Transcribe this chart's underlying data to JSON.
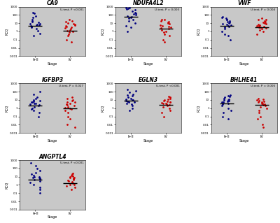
{
  "panels": [
    {
      "title": "CA9",
      "ptext": "U-test, P <0.001",
      "blue_median": 5.0,
      "red_median": 1.2,
      "blue_dots": [
        0.3,
        0.6,
        1.2,
        2.0,
        3.0,
        4.0,
        5.0,
        5.5,
        6.0,
        7.0,
        8.0,
        9.0,
        12.0,
        15.0,
        20.0,
        30.0,
        50.0,
        80.0,
        150.0,
        200.0
      ],
      "red_dots": [
        0.05,
        0.1,
        0.3,
        0.5,
        0.8,
        1.0,
        1.2,
        1.5,
        2.0,
        2.5,
        3.0,
        4.0,
        5.0,
        6.0,
        7.0,
        8.0,
        10.0,
        15.0,
        20.0,
        25.0
      ],
      "ylim": [
        0.001,
        1000
      ],
      "ytick_labels": [
        "0.001",
        "0.01",
        "0.1",
        "1",
        "10",
        "100",
        "1000"
      ],
      "ytick_vals": [
        0.001,
        0.01,
        0.1,
        1,
        10,
        100,
        1000
      ]
    },
    {
      "title": "NDUFA4L2",
      "ptext": "U-test, P = 0.003",
      "blue_median": 60.0,
      "red_median": 2.0,
      "blue_dots": [
        1.0,
        3.0,
        5.0,
        10.0,
        20.0,
        30.0,
        40.0,
        50.0,
        60.0,
        80.0,
        100.0,
        120.0,
        150.0,
        200.0,
        300.0,
        400.0,
        500.0,
        600.0,
        700.0,
        800.0
      ],
      "red_dots": [
        0.05,
        0.1,
        0.3,
        0.5,
        0.8,
        1.0,
        1.5,
        2.0,
        2.5,
        3.0,
        4.0,
        5.0,
        6.0,
        8.0,
        10.0,
        12.0,
        15.0,
        20.0,
        25.0,
        30.0
      ],
      "ylim": [
        0.001,
        1000
      ],
      "ytick_labels": [
        "0.001",
        "0.01",
        "0.1",
        "1",
        "10",
        "100",
        "1000"
      ],
      "ytick_vals": [
        0.001,
        0.01,
        0.1,
        1,
        10,
        100,
        1000
      ]
    },
    {
      "title": "VWF",
      "ptext": "U-test, P = 0.004",
      "blue_median": 5.0,
      "red_median": 3.5,
      "blue_dots": [
        0.1,
        0.3,
        0.5,
        1.0,
        2.0,
        3.0,
        4.0,
        5.0,
        6.0,
        7.0,
        8.0,
        10.0,
        12.0,
        15.0,
        20.0,
        25.0,
        30.0,
        40.0,
        50.0,
        60.0
      ],
      "red_dots": [
        0.5,
        1.0,
        1.5,
        2.0,
        2.5,
        3.0,
        3.5,
        4.0,
        4.5,
        5.0,
        6.0,
        7.0,
        8.0,
        10.0,
        12.0,
        15.0,
        20.0,
        25.0,
        30.0,
        40.0
      ],
      "ylim": [
        0.001,
        1000
      ],
      "ytick_labels": [
        "0.001",
        "0.01",
        "0.1",
        "1",
        "10",
        "100",
        "1000"
      ],
      "ytick_vals": [
        0.001,
        0.01,
        0.1,
        1,
        10,
        100,
        1000
      ]
    },
    {
      "title": "IGFBP3",
      "ptext": "U-test, P = 0.027",
      "blue_median": 2.0,
      "red_median": 1.0,
      "blue_dots": [
        0.1,
        0.3,
        0.5,
        0.8,
        1.0,
        1.5,
        2.0,
        2.5,
        3.0,
        3.5,
        4.0,
        5.0,
        6.0,
        7.0,
        8.0,
        10.0,
        15.0,
        20.0,
        50.0,
        100.0
      ],
      "red_dots": [
        0.005,
        0.01,
        0.05,
        0.1,
        0.3,
        0.5,
        0.8,
        1.0,
        1.2,
        1.5,
        2.0,
        2.5,
        3.0,
        4.0,
        5.0,
        6.0,
        8.0,
        10.0,
        15.0,
        20.0
      ],
      "ylim": [
        0.001,
        1000
      ],
      "ytick_labels": [
        "0.001",
        "0.01",
        "0.1",
        "1",
        "10",
        "100",
        "1000"
      ],
      "ytick_vals": [
        0.001,
        0.01,
        0.1,
        1,
        10,
        100,
        1000
      ]
    },
    {
      "title": "EGLN3",
      "ptext": "U-test, P <0.001",
      "blue_median": 8.0,
      "red_median": 2.5,
      "blue_dots": [
        0.5,
        1.0,
        2.0,
        3.0,
        4.0,
        5.0,
        6.0,
        7.0,
        8.0,
        9.0,
        10.0,
        12.0,
        15.0,
        20.0,
        30.0,
        40.0,
        50.0,
        80.0,
        120.0,
        180.0
      ],
      "red_dots": [
        0.1,
        0.3,
        0.5,
        1.0,
        1.5,
        2.0,
        2.5,
        3.0,
        3.5,
        4.0,
        4.5,
        5.0,
        6.0,
        7.0,
        8.0,
        10.0,
        12.0,
        15.0,
        20.0,
        25.0
      ],
      "ylim": [
        0.001,
        1000
      ],
      "ytick_labels": [
        "0.001",
        "0.01",
        "0.1",
        "1",
        "10",
        "100",
        "1000"
      ],
      "ytick_vals": [
        0.001,
        0.01,
        0.1,
        1,
        10,
        100,
        1000
      ]
    },
    {
      "title": "BHLHE41",
      "ptext": "U-test, P = 0.005",
      "blue_median": 4.0,
      "red_median": 2.5,
      "blue_dots": [
        0.05,
        0.1,
        0.3,
        0.5,
        1.0,
        2.0,
        3.0,
        4.0,
        5.0,
        6.0,
        7.0,
        8.0,
        9.0,
        10.0,
        12.0,
        15.0,
        20.0,
        25.0,
        30.0,
        40.0
      ],
      "red_dots": [
        0.005,
        0.01,
        0.05,
        0.1,
        0.3,
        0.5,
        1.0,
        1.5,
        2.0,
        2.5,
        3.0,
        3.5,
        4.0,
        5.0,
        6.0,
        7.0,
        8.0,
        10.0,
        12.0,
        15.0
      ],
      "ylim": [
        0.001,
        1000
      ],
      "ytick_labels": [
        "0.001",
        "0.01",
        "0.1",
        "1",
        "10",
        "100",
        "1000"
      ],
      "ytick_vals": [
        0.001,
        0.01,
        0.1,
        1,
        10,
        100,
        1000
      ]
    },
    {
      "title": "ANGPTL4",
      "ptext": "U-test, P <0.001",
      "blue_median": 4.0,
      "red_median": 1.5,
      "blue_dots": [
        0.1,
        0.3,
        0.5,
        1.0,
        2.0,
        3.0,
        4.0,
        5.0,
        6.0,
        7.0,
        8.0,
        9.0,
        10.0,
        15.0,
        20.0,
        30.0,
        50.0,
        100.0,
        200.0,
        500.0
      ],
      "red_dots": [
        0.3,
        0.5,
        0.8,
        1.0,
        1.2,
        1.5,
        2.0,
        2.5,
        3.0,
        3.5,
        4.0,
        5.0,
        6.0,
        7.0,
        8.0,
        10.0,
        12.0,
        15.0,
        20.0,
        25.0
      ],
      "ylim": [
        0.001,
        1000
      ],
      "ytick_labels": [
        "0.001",
        "0.01",
        "0.1",
        "1",
        "10",
        "100",
        "1000"
      ],
      "ytick_vals": [
        0.001,
        0.01,
        0.1,
        1,
        10,
        100,
        1000
      ]
    }
  ],
  "blue_color": "#000080",
  "red_color": "#CC0000",
  "bg_color": "#C8C8C8",
  "fig_bg": "#FFFFFF",
  "xlabel": "Stage",
  "ylabel": "RCQ",
  "xtick_labels": [
    "I+II",
    "IV"
  ]
}
